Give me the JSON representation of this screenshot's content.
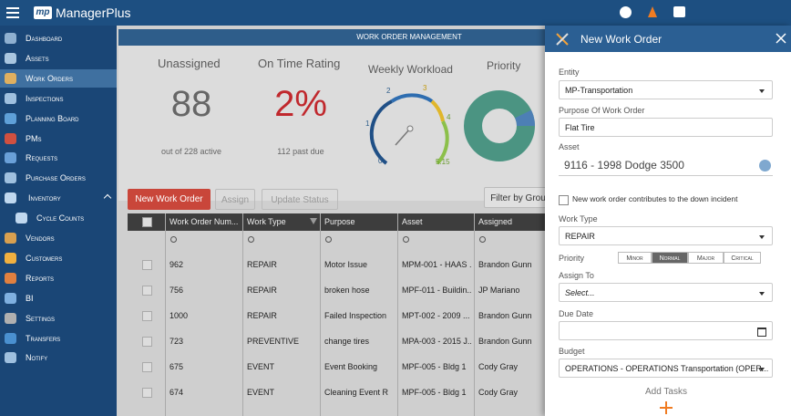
{
  "header": {
    "logo_mark": "mp",
    "logo": "ManagerPlus"
  },
  "sidebar": {
    "items": [
      "Dashboard",
      "Assets",
      "Work Orders",
      "Inspections",
      "Planning Board",
      "PMs",
      "Requests",
      "Purchase Orders",
      "Inventory",
      "Cycle Counts",
      "Vendors",
      "Customers",
      "Reports",
      "BI",
      "Settings",
      "Transfers",
      "Notify"
    ]
  },
  "main": {
    "title": "WORK ORDER MANAGEMENT",
    "cards": [
      {
        "title": "Unassigned",
        "value": 88,
        "caption": "out of 228 active"
      },
      {
        "title": "On Time Rating",
        "value": "2%",
        "caption": "112 past due"
      },
      {
        "title": "Weekly Workload",
        "gauge_labels": [
          "0",
          "1",
          "2",
          "3",
          "4",
          "5.15"
        ]
      },
      {
        "title": "Priority"
      }
    ],
    "buttons": [
      "New Work Order",
      "Assign",
      "Update Status",
      "Filter by Grou"
    ],
    "table": {
      "columns": [
        "Work Order Num...",
        "Work Type",
        "Purpose",
        "Asset",
        "Assigned"
      ],
      "rows": [
        [
          "962",
          "REPAIR",
          "Motor Issue",
          "MPM-001 - HAAS ...",
          "Brandon Gunn"
        ],
        [
          "756",
          "REPAIR",
          "broken hose",
          "MPF-011 - Buildin...",
          "JP Mariano"
        ],
        [
          "1000",
          "REPAIR",
          "Failed Inspection",
          "MPT-002 - 2009 ...",
          "Brandon Gunn"
        ],
        [
          "723",
          "PREVENTIVE",
          "change tires",
          "MPA-003 - 2015 J...",
          "Brandon Gunn"
        ],
        [
          "675",
          "EVENT",
          "Event Booking",
          "MPF-005 - Bldg 1",
          "Cody Gray"
        ],
        [
          "674",
          "EVENT",
          "Cleaning Event R",
          "MPF-005 - Bldg 1",
          "Cody Gray"
        ]
      ]
    }
  },
  "panel": {
    "title": "New Work Order",
    "entity": {
      "label": "Entity",
      "value": "MP-Transportation"
    },
    "purpose": {
      "label": "Purpose Of Work Order",
      "value": "Flat Tire"
    },
    "asset": {
      "label": "Asset",
      "value": "9116 - 1998 Dodge 3500"
    },
    "down_incident": "New work order contributes to the down incident",
    "work_type": {
      "label": "Work Type",
      "value": "REPAIR"
    },
    "priority": {
      "label": "Priority",
      "options": [
        "Minor",
        "Normal",
        "Major",
        "Critical"
      ]
    },
    "assign_to": {
      "label": "Assign To",
      "placeholder": "Select..."
    },
    "due_date": {
      "label": "Due Date"
    },
    "budget": {
      "label": "Budget",
      "value": "OPERATIONS - OPERATIONS Transportation (OPER..."
    },
    "add_tasks": "Add Tasks"
  }
}
